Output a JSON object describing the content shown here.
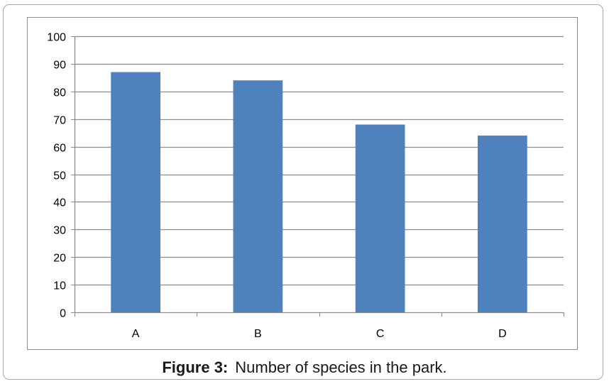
{
  "chart_data": {
    "type": "bar",
    "categories": [
      "A",
      "B",
      "C",
      "D"
    ],
    "values": [
      87,
      84,
      68,
      64
    ],
    "ylim": [
      0,
      100
    ],
    "yticks": [
      0,
      10,
      20,
      30,
      40,
      50,
      60,
      70,
      80,
      90,
      100
    ],
    "grid": true,
    "legend": "none",
    "bar_color": "#4f81bd"
  },
  "caption": {
    "label": "Figure 3:",
    "text": "Number of species in the park."
  }
}
